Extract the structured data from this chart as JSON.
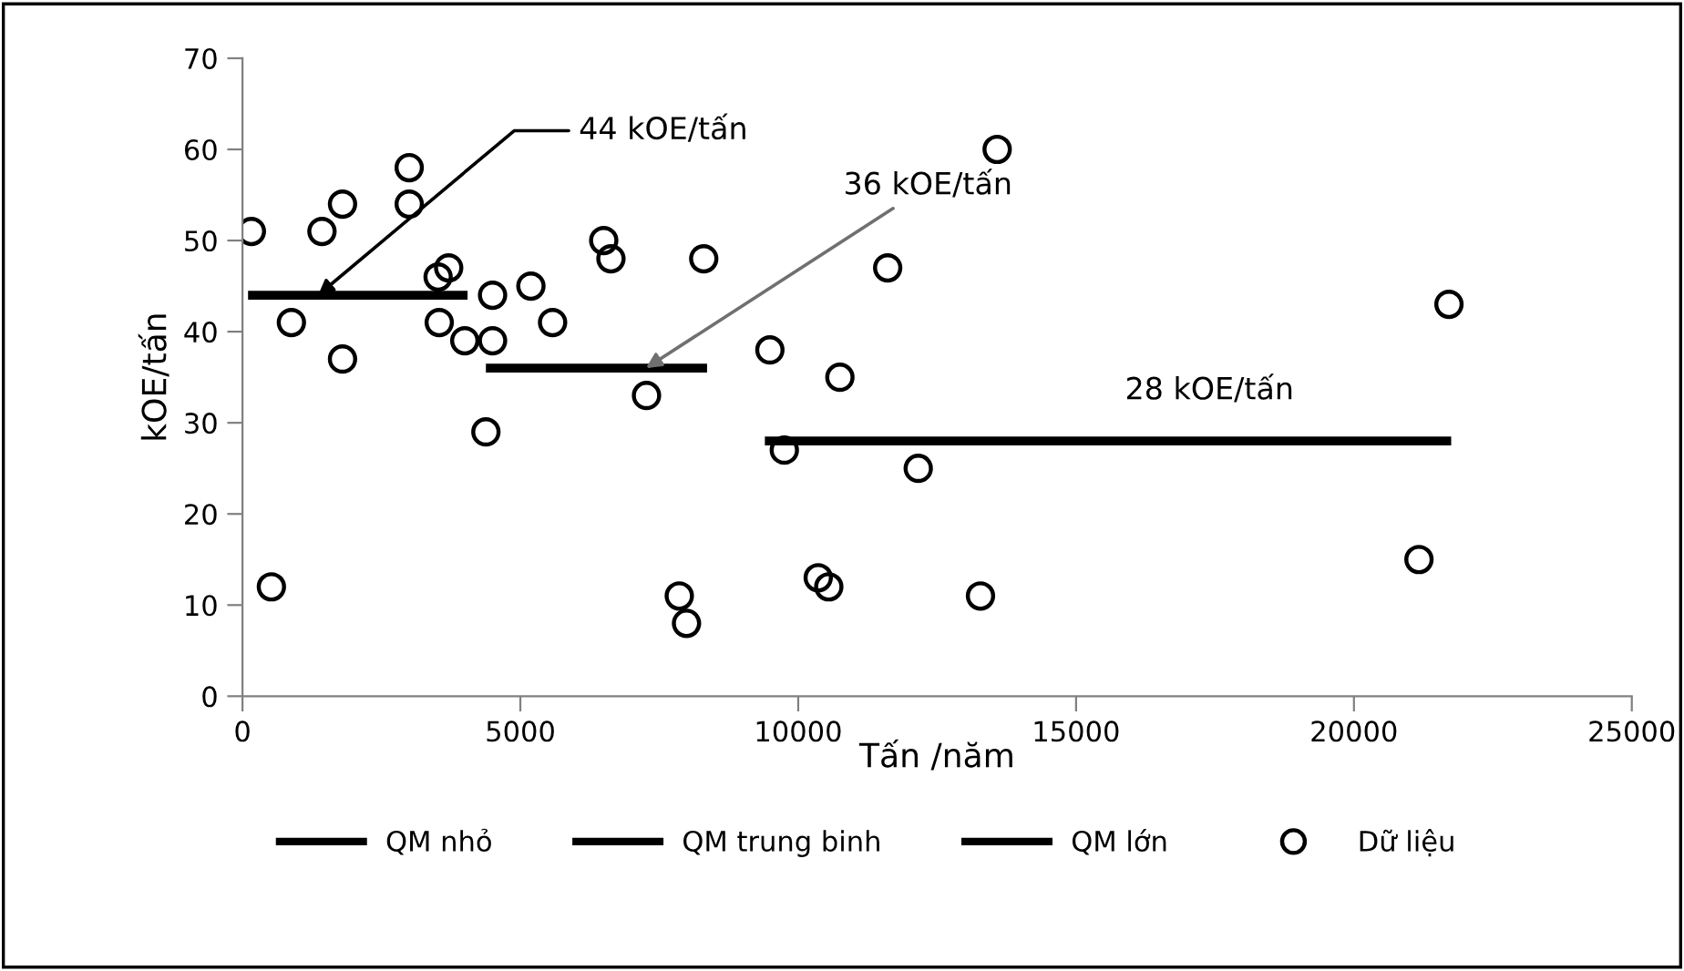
{
  "chart_data": {
    "type": "scatter",
    "xlabel": "Tấn /năm",
    "ylabel": "kOE/tấn",
    "xlim": [
      0,
      25000
    ],
    "ylim": [
      0,
      70
    ],
    "xticks": [
      0,
      5000,
      10000,
      15000,
      20000,
      25000
    ],
    "yticks": [
      0,
      10,
      20,
      30,
      40,
      50,
      60,
      70
    ],
    "grid": false,
    "legend": "bottom",
    "series": [
      {
        "name": "QM nhỏ",
        "type": "line",
        "marker": "none",
        "color": "#000000",
        "x": [
          100,
          4050
        ],
        "values": [
          44,
          44
        ]
      },
      {
        "name": "QM trung binh",
        "type": "line",
        "marker": "none",
        "color": "#000000",
        "x": [
          4380,
          8360
        ],
        "values": [
          36,
          36
        ]
      },
      {
        "name": "QM lớn",
        "type": "line",
        "marker": "none",
        "color": "#000000",
        "x": [
          9400,
          21750
        ],
        "values": [
          28,
          28
        ]
      },
      {
        "name": "Dữ liệu",
        "color": "#000000",
        "x": [
          160,
          520,
          880,
          1430,
          1800,
          1800,
          3000,
          3000,
          3520,
          3710,
          3540,
          4000,
          4500,
          4500,
          4380,
          5190,
          5580,
          6500,
          6630,
          8300,
          7270,
          7860,
          7990,
          9490,
          9750,
          13580,
          11610,
          10750,
          12160,
          10360,
          10550,
          13280,
          21710,
          21170
        ],
        "marker": "circle",
        "values": [
          51,
          12,
          41,
          51,
          54,
          37,
          58,
          54,
          46,
          47,
          41,
          39,
          44,
          39,
          29,
          45,
          41,
          50,
          48,
          48,
          33,
          11,
          8,
          38,
          27,
          60,
          47,
          35,
          25,
          13,
          12,
          11,
          43,
          15
        ]
      }
    ],
    "annotations": [
      {
        "text": "44 kOE/tấn",
        "x": 1360,
        "y": 44
      },
      {
        "text": "36 kOE/tấn",
        "x": 7260,
        "y": 36
      },
      {
        "text": "28 kOE/tấn",
        "x": 17400,
        "y": 28
      }
    ]
  }
}
